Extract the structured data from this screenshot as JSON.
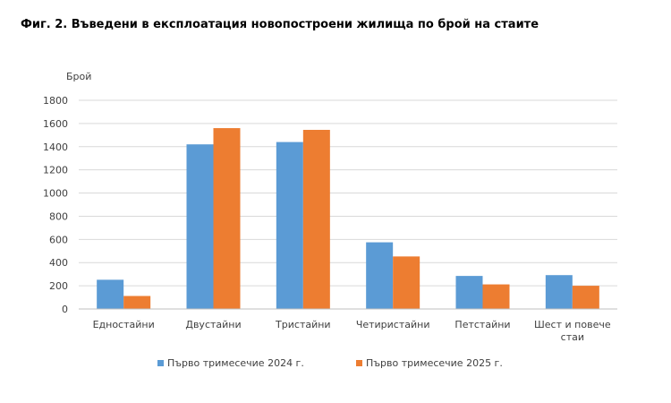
{
  "figure": {
    "title": "Фиг. 2. Въведени в експлоатация новопостроени жилища по брой на стаите"
  },
  "colors": {
    "series_2024": "#5b9bd5",
    "series_2025": "#ed7d31",
    "gridline": "#d9d9d9",
    "axis_line": "#bfbfbf",
    "text": "#404040"
  },
  "chart_data": {
    "type": "bar",
    "title": "Фиг. 2. Въведени в експлоатация новопостроени жилища по брой на стаите",
    "ylabel": "Брой",
    "xlabel": "",
    "ylim": [
      0,
      1800
    ],
    "yticks": [
      0,
      200,
      400,
      600,
      800,
      1000,
      1200,
      1400,
      1600,
      1800
    ],
    "grid": true,
    "legend": "bottom-center",
    "categories": [
      [
        "Едностайни"
      ],
      [
        "Двустайни"
      ],
      [
        "Тристайни"
      ],
      [
        "Четиристайни"
      ],
      [
        "Петстайни"
      ],
      [
        "Шест и повече",
        "стаи"
      ]
    ],
    "series": [
      {
        "name": "Първо тримесечие 2024 г.",
        "values": [
          252,
          1420,
          1440,
          575,
          285,
          292
        ]
      },
      {
        "name": "Първо тримесечие 2025 г.",
        "values": [
          112,
          1560,
          1545,
          453,
          212,
          200
        ]
      }
    ]
  }
}
